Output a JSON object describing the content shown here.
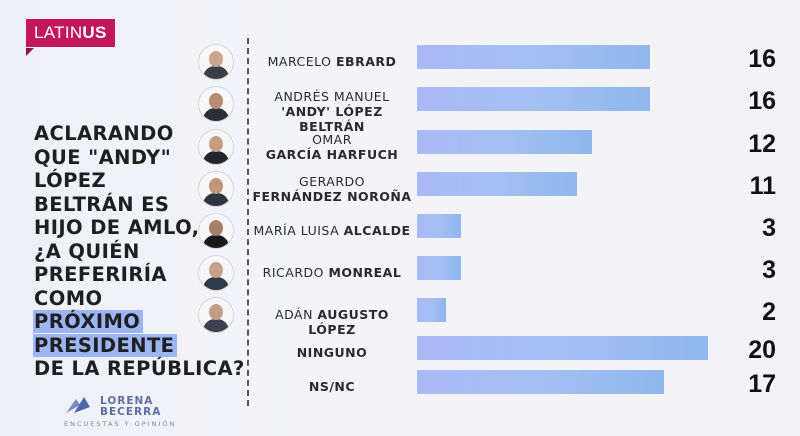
{
  "brand": {
    "logo_prefix": "LATIN",
    "logo_suffix": "US",
    "color": "#c2185b"
  },
  "question": {
    "lines": [
      "ACLARANDO",
      "QUE \"ANDY\"",
      "LÓPEZ",
      "BELTRÁN ES",
      "HIJO DE AMLO,",
      "¿A QUIÉN",
      "PREFERIRÍA",
      "COMO"
    ],
    "highlight_lines": [
      "PRÓXIMO",
      "PRESIDENTE"
    ],
    "last_line": "DE LA REPÚBLICA?"
  },
  "chart_data": {
    "type": "bar",
    "orientation": "horizontal",
    "categories": [
      {
        "first": "MARCELO",
        "last": "EBRARD",
        "layout": "inline"
      },
      {
        "first": "ANDRÉS MANUEL",
        "last": "'ANDY' LÓPEZ BELTRÁN",
        "layout": "stacked"
      },
      {
        "first": "OMAR",
        "last": "GARCÍA HARFUCH",
        "layout": "stacked"
      },
      {
        "first": "GERARDO",
        "last": "FERNÁNDEZ NOROÑA",
        "layout": "stacked"
      },
      {
        "first": "MARÍA LUISA",
        "last": "ALCALDE",
        "layout": "inline"
      },
      {
        "first": "RICARDO",
        "last": "MONREAL",
        "layout": "inline"
      },
      {
        "first": "ADÁN",
        "last": "AUGUSTO LÓPEZ",
        "layout": "inline"
      },
      {
        "first": "",
        "last": "NINGUNO",
        "layout": "inline"
      },
      {
        "first": "",
        "last": "NS/NC",
        "layout": "inline"
      }
    ],
    "values": [
      16,
      16,
      12,
      11,
      3,
      3,
      2,
      20,
      17
    ],
    "has_photo": [
      true,
      true,
      true,
      true,
      true,
      true,
      true,
      false,
      false
    ],
    "bar_color": "#a4c0f3",
    "xlim": [
      0,
      20
    ]
  },
  "footer": {
    "brand_line1": "LORENA",
    "brand_line2": "BECERRA",
    "tagline": "ENCUESTAS Y OPINIÓN"
  }
}
